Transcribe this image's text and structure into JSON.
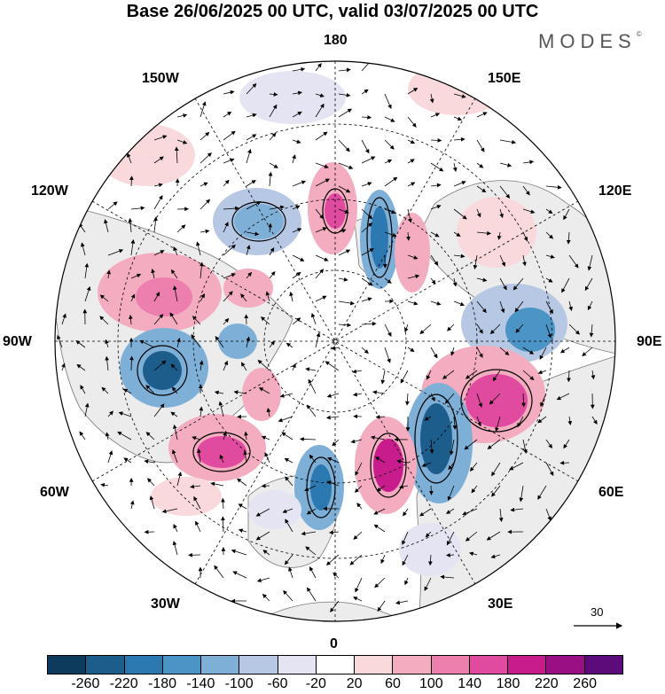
{
  "title": "Base 26/06/2025 00 UTC, valid 03/07/2025 00 UTC",
  "logo": {
    "text": "MODES",
    "mark": "©"
  },
  "longitude_labels": {
    "top": "180",
    "bottom": "0",
    "left": "90W",
    "right": "90E",
    "upper_left_1": "150W",
    "upper_left_2": "120W",
    "upper_right_1": "150E",
    "upper_right_2": "120E",
    "lower_left_1": "60W",
    "lower_left_2": "30W",
    "lower_right_1": "60E",
    "lower_right_2": "30E"
  },
  "vector_reference": {
    "value": "30"
  },
  "colorbar": {
    "colors": [
      "#0d3b5e",
      "#1c5d8c",
      "#2c78b0",
      "#4b94c6",
      "#7eafd7",
      "#b7c8e4",
      "#e4e4f2",
      "#ffffff",
      "#fad9dd",
      "#f4adc0",
      "#ec7fae",
      "#e04b9f",
      "#c81b8c",
      "#9a0f84",
      "#5c0c7a"
    ],
    "tick_labels": [
      "-260",
      "-220",
      "-180",
      "-140",
      "-100",
      "-60",
      "-20",
      "20",
      "60",
      "100",
      "140",
      "180",
      "220",
      "260"
    ]
  }
}
